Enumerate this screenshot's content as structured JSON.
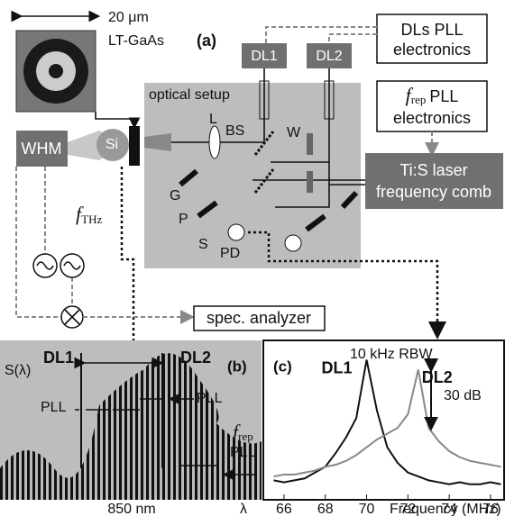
{
  "panel_a": {
    "label": "(a)",
    "scale_bar": "20 μm",
    "sample": "LT-GaAs",
    "dl1": "DL1",
    "dl2": "DL2",
    "dls_pll": [
      "DLs PLL",
      "electronics"
    ],
    "optical_setup": "optical setup",
    "frep_pll": {
      "symbol": "f",
      "subscript": "rep",
      "text": "PLL",
      "line2": "electronics"
    },
    "laser": [
      "Ti:S laser",
      "frequency comb"
    ],
    "whm": "WHM",
    "si": "Si",
    "lens": "L",
    "bs": "BS",
    "w": "W",
    "g": "G",
    "p": "P",
    "s": "S",
    "pd": "PD",
    "fthz": {
      "symbol": "f",
      "subscript": "THz"
    },
    "analyzer": "spec. analyzer"
  },
  "panel_b": {
    "label": "(b)",
    "dl1": "DL1",
    "dl2": "DL2",
    "y_label": "S(λ)",
    "pll_1": "PLL",
    "pll_2": "PLL",
    "frep": {
      "symbol": "f",
      "subscript": "rep",
      "text": "PLL"
    },
    "wavelength": "850 nm",
    "x_label": "λ"
  },
  "chart_data": {
    "type": "line",
    "title": "(c)",
    "annotation": "10 kHz RBW",
    "scale_bar": {
      "value": 30,
      "label": "30 dB"
    },
    "x_label": "Frequency (MHz)",
    "x": [
      65.5,
      66,
      66.5,
      67,
      67.5,
      68,
      68.5,
      69,
      69.5,
      70,
      70.5,
      71,
      71.5,
      72,
      72.5,
      73,
      73.5,
      74,
      74.5,
      75,
      75.5,
      76,
      76.5
    ],
    "series": [
      {
        "name": "DL1",
        "color": "#111111",
        "values": [
          -72,
          -73,
          -72,
          -71,
          -68,
          -65,
          -58,
          -50,
          -40,
          -10,
          -36,
          -55,
          -63,
          -68,
          -70,
          -72,
          -73,
          -74,
          -73,
          -74,
          -74,
          -73,
          -74
        ]
      },
      {
        "name": "DL2",
        "color": "#888888",
        "values": [
          -70,
          -69,
          -69,
          -68,
          -67,
          -65,
          -64,
          -62,
          -59,
          -55,
          -51,
          -48,
          -45,
          -38,
          -15,
          -45,
          -52,
          -57,
          -60,
          -62,
          -63,
          -64,
          -65
        ]
      }
    ],
    "xlim": [
      65,
      76.7
    ],
    "ylim": [
      -82,
      0
    ],
    "xticks": [
      66,
      68,
      70,
      72,
      74,
      76
    ]
  }
}
